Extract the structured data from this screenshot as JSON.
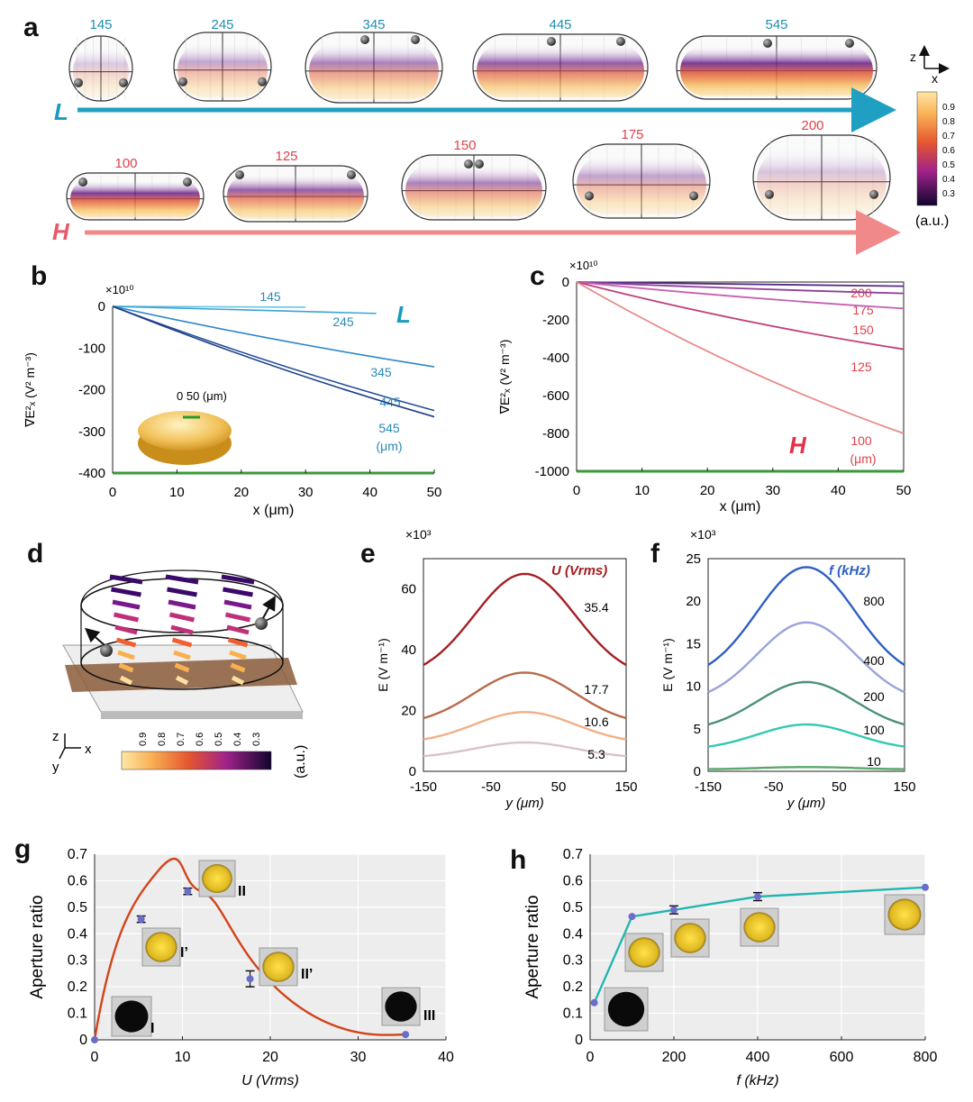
{
  "panels": {
    "a": "a",
    "b": "b",
    "c": "c",
    "d": "d",
    "e": "e",
    "f": "f",
    "g": "g",
    "h": "h"
  },
  "colors": {
    "L_series": [
      "#6cc3e0",
      "#3aa3d6",
      "#2b86c8",
      "#244f9a",
      "#1e3f86"
    ],
    "H_series": [
      "#5b2a86",
      "#8d3f9a",
      "#c75fb0",
      "#c0407a",
      "#e98a8a"
    ],
    "green_axis": "#3a9a3a",
    "e_series": [
      "#a51e22",
      "#b86a4a",
      "#f0b088",
      "#d9c2c8"
    ],
    "f_series": [
      "#2d5fc4",
      "#9aa3db",
      "#4c8f7e",
      "#33c9b0",
      "#5aa86a"
    ],
    "g_line": "#d2441a",
    "h_line": "#22b5b0",
    "marker": "#6a6ec8",
    "L_arrow": "#1f9fc2",
    "H_arrow": "#f08a8a"
  },
  "panel_a": {
    "L_values": [
      "145",
      "245",
      "345",
      "445",
      "545"
    ],
    "H_values": [
      "100",
      "125",
      "150",
      "175",
      "200"
    ],
    "L_symbol": "L",
    "H_symbol": "H",
    "axes_z": "z",
    "axes_x": "x",
    "colorbar_ticks": [
      "0.9",
      "0.8",
      "0.7",
      "0.6",
      "0.5",
      "0.4",
      "0.3"
    ],
    "colorbar_unit": "(a.u.)"
  },
  "panel_d": {
    "colorbar_ticks": [
      "0.9",
      "0.8",
      "0.7",
      "0.6",
      "0.5",
      "0.4",
      "0.3"
    ],
    "colorbar_unit": "(a.u.)",
    "axes_z": "z",
    "axes_x": "x",
    "axes_y": "y"
  },
  "chart_data": [
    {
      "panel": "b",
      "type": "line",
      "multiplier": "×10¹⁰",
      "xlabel": "x (μm)",
      "ylabel": "∇E²ₓ (V² m⁻³)",
      "xlim": [
        0,
        50
      ],
      "ylim": [
        -400,
        0
      ],
      "xticks": [
        0,
        10,
        20,
        30,
        40,
        50
      ],
      "yticks": [
        0,
        -100,
        -200,
        -300,
        -400
      ],
      "series_symbol": "L",
      "unit_label": "(μm)",
      "inset_label": "0   50 (μm)",
      "series": [
        {
          "name": "145",
          "x": [
            0,
            30
          ],
          "y": [
            0,
            -2
          ]
        },
        {
          "name": "245",
          "x": [
            0,
            41
          ],
          "y": [
            0,
            -17
          ]
        },
        {
          "name": "345",
          "x": [
            0,
            50
          ],
          "y": [
            0,
            -145
          ]
        },
        {
          "name": "445",
          "x": [
            0,
            50
          ],
          "y": [
            0,
            -250
          ]
        },
        {
          "name": "545",
          "x": [
            0,
            50
          ],
          "y": [
            0,
            -265
          ]
        }
      ]
    },
    {
      "panel": "c",
      "type": "line",
      "multiplier": "×10¹⁰",
      "xlabel": "x (μm)",
      "ylabel": "∇E²ₓ (V² m⁻³)",
      "xlim": [
        0,
        50
      ],
      "ylim": [
        -1000,
        0
      ],
      "xticks": [
        0,
        10,
        20,
        30,
        40,
        50
      ],
      "yticks": [
        0,
        -200,
        -400,
        -600,
        -800,
        -1000
      ],
      "series_symbol": "H",
      "unit_label": "(μm)",
      "series": [
        {
          "name": "200",
          "x": [
            0,
            50
          ],
          "y": [
            0,
            -22
          ]
        },
        {
          "name": "175",
          "x": [
            0,
            50
          ],
          "y": [
            0,
            -60
          ]
        },
        {
          "name": "150",
          "x": [
            0,
            50
          ],
          "y": [
            0,
            -140
          ]
        },
        {
          "name": "125",
          "x": [
            0,
            50
          ],
          "y": [
            0,
            -355
          ]
        },
        {
          "name": "100",
          "x": [
            0,
            50
          ],
          "y": [
            0,
            -800
          ]
        }
      ]
    },
    {
      "panel": "e",
      "type": "line",
      "multiplier": "×10³",
      "xlabel": "y (μm)",
      "ylabel": "E (V m⁻¹)",
      "xlim": [
        -150,
        150
      ],
      "ylim": [
        0,
        70
      ],
      "xticks": [
        -150,
        -50,
        50,
        150
      ],
      "yticks": [
        0,
        20,
        40,
        60
      ],
      "legend_title": "U (Vrms)",
      "series": [
        {
          "name": "35.4",
          "peak": 65,
          "edge": 35
        },
        {
          "name": "17.7",
          "peak": 32.5,
          "edge": 17.5
        },
        {
          "name": "10.6",
          "peak": 19.5,
          "edge": 10.5
        },
        {
          "name": "5.3",
          "peak": 9.5,
          "edge": 5
        }
      ]
    },
    {
      "panel": "f",
      "type": "line",
      "multiplier": "×10³",
      "xlabel": "y (μm)",
      "ylabel": "E (V m⁻¹)",
      "xlim": [
        -150,
        150
      ],
      "ylim": [
        0,
        25
      ],
      "xticks": [
        -150,
        -50,
        50,
        150
      ],
      "yticks": [
        0,
        5,
        10,
        15,
        20,
        25
      ],
      "legend_title": "f (kHz)",
      "series": [
        {
          "name": "800",
          "peak": 24,
          "edge": 12.5
        },
        {
          "name": "400",
          "peak": 17.5,
          "edge": 9.3
        },
        {
          "name": "200",
          "peak": 10.5,
          "edge": 5.5
        },
        {
          "name": "100",
          "peak": 5.5,
          "edge": 2.9
        },
        {
          "name": "10",
          "peak": 0.5,
          "edge": 0.25
        }
      ]
    },
    {
      "panel": "g",
      "type": "line",
      "xlabel": "U (Vrms)",
      "ylabel": "Aperture ratio",
      "xlim": [
        0,
        40
      ],
      "ylim": [
        0,
        0.7
      ],
      "xticks": [
        0,
        10,
        20,
        30,
        40
      ],
      "yticks": [
        0,
        0.1,
        0.2,
        0.3,
        0.4,
        0.5,
        0.6,
        0.7
      ],
      "points": [
        {
          "x": 0,
          "y": 0,
          "err": 0,
          "label": "I"
        },
        {
          "x": 5.3,
          "y": 0.455,
          "err": 0.012,
          "label": "I’"
        },
        {
          "x": 10.6,
          "y": 0.56,
          "err": 0.012,
          "label": "II"
        },
        {
          "x": 17.7,
          "y": 0.23,
          "err": 0.03,
          "label": "II’"
        },
        {
          "x": 35.4,
          "y": 0.02,
          "err": 0,
          "label": "III"
        }
      ]
    },
    {
      "panel": "h",
      "type": "line",
      "xlabel": "f (kHz)",
      "ylabel": "Aperture ratio",
      "xlim": [
        0,
        800
      ],
      "ylim": [
        0,
        0.7
      ],
      "xticks": [
        0,
        200,
        400,
        600,
        800
      ],
      "yticks": [
        0,
        0.1,
        0.2,
        0.3,
        0.4,
        0.5,
        0.6,
        0.7
      ],
      "points": [
        {
          "x": 10,
          "y": 0.14,
          "err": 0
        },
        {
          "x": 100,
          "y": 0.465,
          "err": 0
        },
        {
          "x": 200,
          "y": 0.49,
          "err": 0.015
        },
        {
          "x": 400,
          "y": 0.54,
          "err": 0.015
        },
        {
          "x": 800,
          "y": 0.575,
          "err": 0
        }
      ]
    }
  ]
}
